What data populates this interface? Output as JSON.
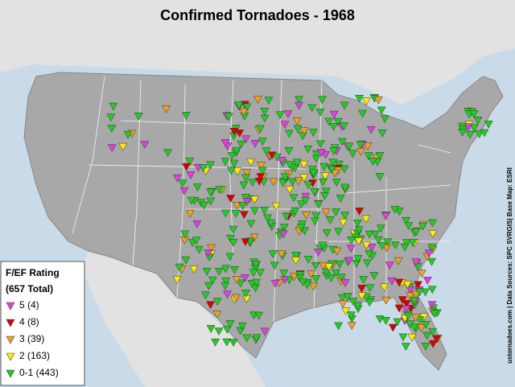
{
  "title": "Confirmed Tornadoes - 1968",
  "legend": {
    "title": "F/EF Rating",
    "subtitle": "(657 Total)",
    "items": [
      {
        "label": "5 (4)",
        "color": "#e040e0"
      },
      {
        "label": "4 (8)",
        "color": "#dd0000"
      },
      {
        "label": "3 (39)",
        "color": "#f0a020"
      },
      {
        "label": "2 (163)",
        "color": "#ffee00"
      },
      {
        "label": "0-1 (443)",
        "color": "#22cc22"
      }
    ]
  },
  "credit": "ustornadoes.com | Data Sources: SPC SVRGIS| Base Map: ESRI"
}
